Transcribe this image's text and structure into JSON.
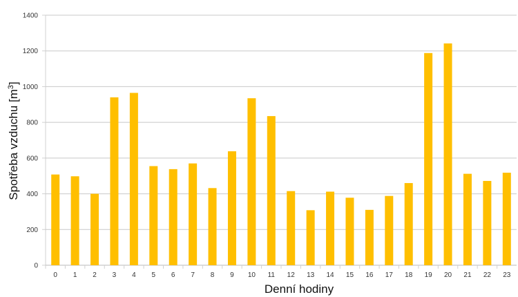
{
  "chart_data": {
    "type": "bar",
    "xlabel": "Denní hodiny",
    "ylabel_main": "Spotřeba vzduchu [m",
    "ylabel_sup": "3",
    "ylabel_close": "]",
    "categories": [
      "0",
      "1",
      "2",
      "3",
      "4",
      "5",
      "6",
      "7",
      "8",
      "9",
      "10",
      "11",
      "12",
      "13",
      "14",
      "15",
      "16",
      "17",
      "18",
      "19",
      "20",
      "21",
      "22",
      "23"
    ],
    "values": [
      508,
      498,
      400,
      940,
      965,
      555,
      538,
      570,
      432,
      638,
      935,
      835,
      415,
      308,
      412,
      378,
      310,
      388,
      460,
      1188,
      1242,
      512,
      472,
      518
    ],
    "ylim": [
      0,
      1400
    ],
    "yticks": [
      0,
      200,
      400,
      600,
      800,
      1000,
      1200,
      1400
    ],
    "grid": true,
    "legend": "none",
    "bar_color": "#FFBF00"
  }
}
